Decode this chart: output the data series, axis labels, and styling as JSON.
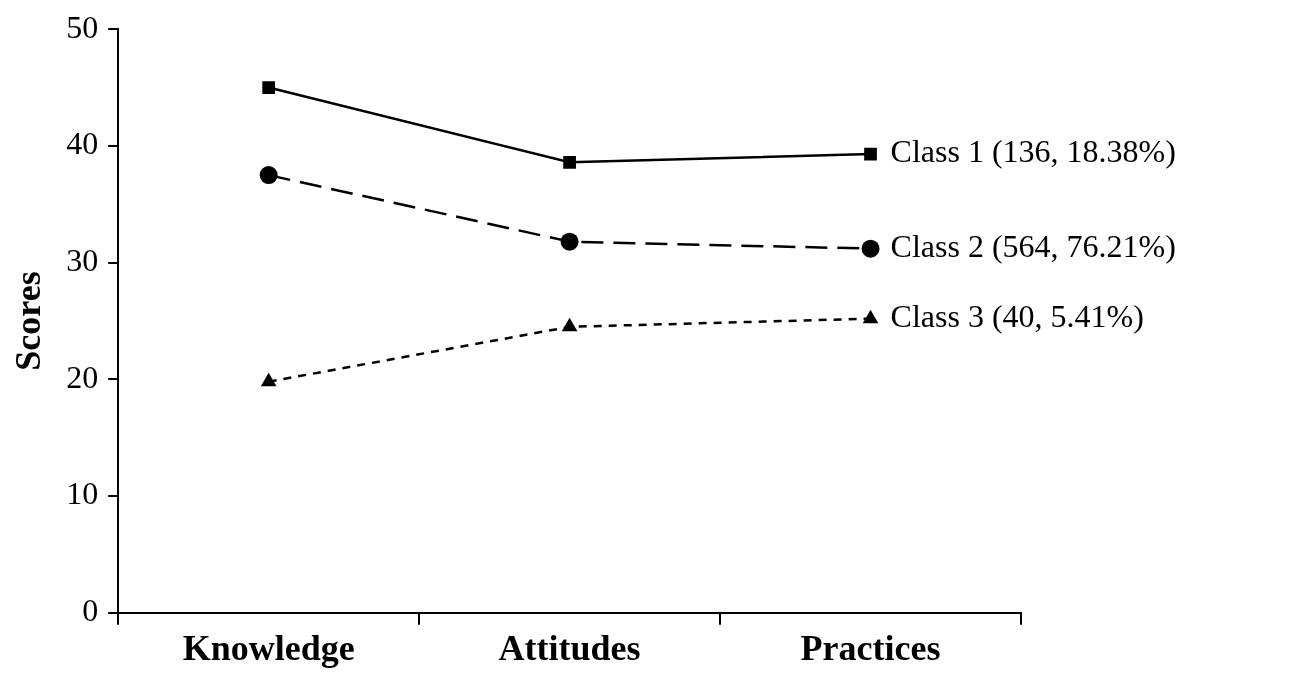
{
  "chart_data": {
    "type": "line",
    "ylabel": "Scores",
    "categories": [
      "Knowledge",
      "Attitudes",
      "Practices"
    ],
    "series": [
      {
        "name": "Class 1 (136, 18.38%)",
        "color": "#000000",
        "values": [
          45,
          38.6,
          39.3
        ],
        "marker": "square",
        "line_style": "solid"
      },
      {
        "name": "Class 2 (564, 76.21%)",
        "color": "#000000",
        "values": [
          37.5,
          31.8,
          31.2
        ],
        "marker": "circle",
        "line_style": "dashed"
      },
      {
        "name": "Class 3 (40, 5.41%)",
        "color": "#000000",
        "values": [
          19.8,
          24.5,
          25.2
        ],
        "marker": "triangle",
        "line_style": "dotted"
      }
    ],
    "ylim": [
      0,
      50
    ],
    "yticks": [
      0,
      10,
      20,
      30,
      40,
      50
    ],
    "grid": false,
    "legend": false
  }
}
